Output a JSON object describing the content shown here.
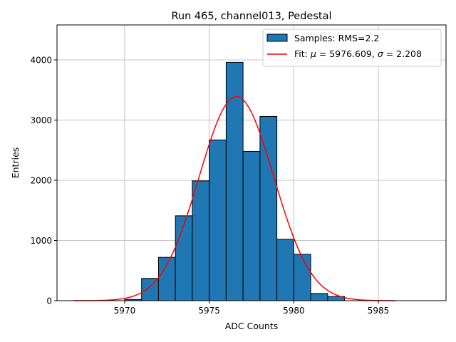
{
  "chart_data": {
    "type": "bar",
    "title": "Run 465, channel013, Pedestal",
    "xlabel": "ADC Counts",
    "ylabel": "Entries",
    "xlim": [
      5966.0,
      5989.0
    ],
    "ylim": [
      0,
      4580
    ],
    "grid": true,
    "legend_position": "top-right",
    "x_ticks": [
      5970,
      5975,
      5980,
      5985
    ],
    "y_ticks": [
      0,
      1000,
      2000,
      3000,
      4000
    ],
    "histogram": {
      "name": "Samples: RMS=2.2",
      "color": "#1f77b4",
      "bin_edges": [
        5970.0,
        5971.0,
        5972.0,
        5973.0,
        5974.0,
        5975.0,
        5976.0,
        5977.0,
        5978.0,
        5979.0,
        5980.0,
        5981.0,
        5982.0,
        5983.0
      ],
      "counts": [
        20,
        370,
        720,
        1410,
        1990,
        2670,
        3960,
        2480,
        3060,
        1020,
        770,
        120,
        70
      ]
    },
    "fit": {
      "legend_prefix": "Fit: ",
      "legend_mu_symbol": "μ",
      "legend_mu_value": " = 5976.609, ",
      "legend_sigma_symbol": "σ",
      "legend_sigma_value": " = 2.208",
      "color": "#ff0000",
      "mu": 5976.609,
      "sigma": 2.208,
      "amplitude": 3390,
      "x_range": [
        5967.0,
        5986.0
      ]
    }
  }
}
